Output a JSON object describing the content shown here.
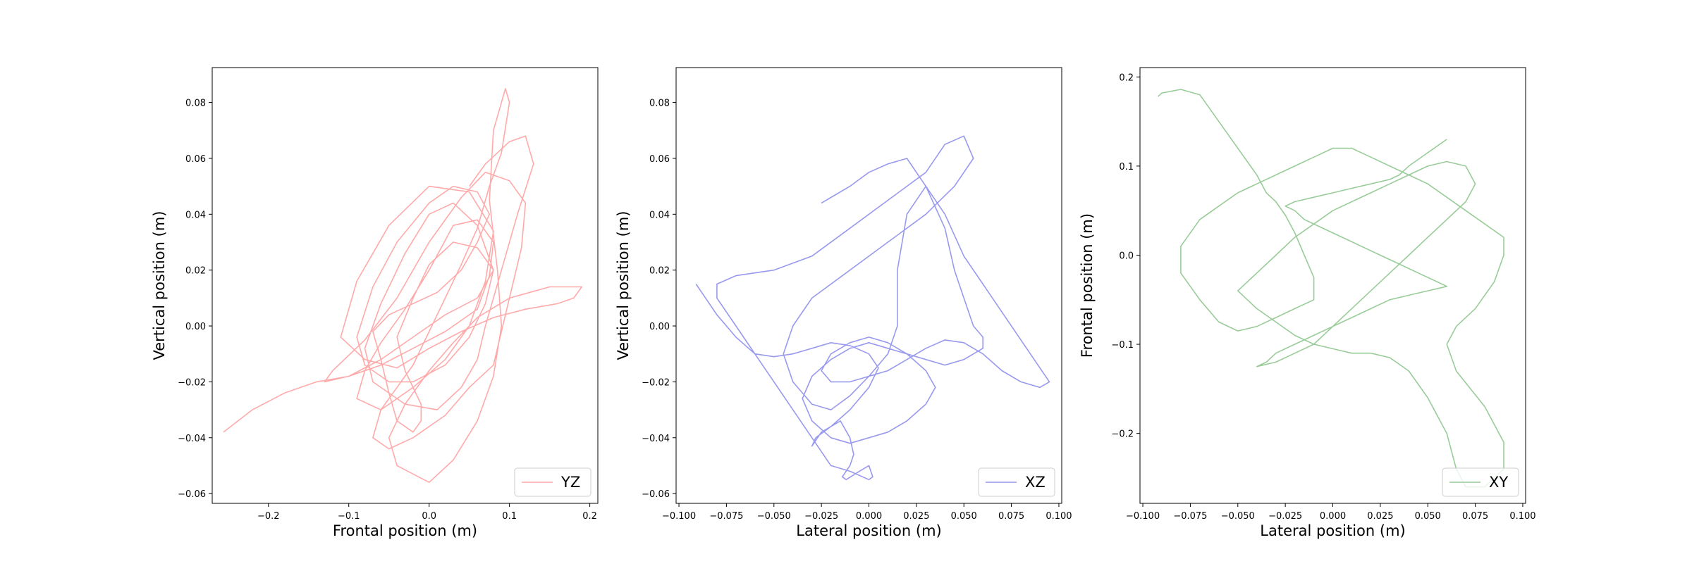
{
  "chart_data": [
    {
      "type": "line",
      "title": "",
      "xlabel": "Frontal position (m)",
      "ylabel": "Vertical position  (m)",
      "xlim": [
        -0.27,
        0.21
      ],
      "ylim": [
        -0.0635,
        0.0925
      ],
      "xticks": [
        -0.2,
        -0.1,
        0.0,
        0.1,
        0.2
      ],
      "xtick_labels": [
        "−0.2",
        "−0.1",
        "0.0",
        "0.1",
        "0.2"
      ],
      "yticks": [
        -0.06,
        -0.04,
        -0.02,
        0.0,
        0.02,
        0.04,
        0.06,
        0.08
      ],
      "ytick_labels": [
        "−0.06",
        "−0.04",
        "−0.02",
        "0.00",
        "0.02",
        "0.04",
        "0.06",
        "0.08"
      ],
      "grid": false,
      "legend_position": "lower-right",
      "color": "#ffaaaa",
      "series": [
        {
          "name": "YZ",
          "x": [
            -0.256,
            -0.22,
            -0.18,
            -0.14,
            -0.1,
            -0.06,
            -0.02,
            0.02,
            0.06,
            0.075,
            0.08,
            0.06,
            0.03,
            0.0,
            -0.03,
            -0.06,
            -0.08,
            -0.09,
            -0.06,
            -0.02,
            0.02,
            0.05,
            0.07,
            0.08,
            0.05,
            0.0,
            -0.05,
            -0.09,
            -0.11,
            -0.08,
            -0.04,
            0.0,
            0.04,
            0.08,
            0.12,
            0.16,
            0.18,
            0.19,
            0.15,
            0.1,
            0.06,
            0.03,
            0.0,
            -0.03,
            -0.05,
            -0.04,
            0.0,
            0.03,
            0.06,
            0.08,
            0.09,
            0.085,
            0.075,
            0.08,
            0.095,
            0.1,
            0.09,
            0.075,
            0.06,
            0.04,
            0.02,
            0.0,
            -0.02,
            -0.04,
            -0.06,
            -0.07,
            -0.05,
            -0.02,
            0.02,
            0.05,
            0.08,
            0.1,
            0.115,
            0.12,
            0.1,
            0.07,
            0.04,
            0.0,
            -0.04,
            -0.08,
            -0.12,
            -0.13,
            -0.1,
            -0.06,
            -0.02,
            0.02,
            0.06,
            0.08,
            0.06,
            0.03,
            0.0,
            -0.02,
            -0.04,
            -0.03,
            -0.01,
            -0.01,
            -0.02,
            -0.04,
            -0.05,
            -0.06,
            -0.07,
            -0.05,
            -0.02,
            0.01,
            0.04,
            0.06,
            0.075,
            0.06,
            0.03,
            0.0,
            -0.04,
            -0.07,
            -0.09,
            -0.08,
            -0.05,
            -0.02,
            0.02,
            0.05,
            0.07,
            0.08,
            0.06,
            0.03,
            0.0,
            -0.03,
            -0.06,
            -0.08,
            -0.07,
            -0.03,
            0.01,
            0.04,
            0.06,
            0.07,
            0.09,
            0.11,
            0.13,
            0.12,
            0.1,
            0.07,
            0.05
          ],
          "y": [
            -0.038,
            -0.03,
            -0.024,
            -0.02,
            -0.018,
            -0.014,
            -0.008,
            -0.002,
            0.006,
            0.018,
            0.03,
            0.038,
            0.036,
            0.02,
            0.006,
            -0.006,
            -0.016,
            -0.026,
            -0.03,
            -0.022,
            -0.012,
            0.0,
            0.016,
            0.034,
            0.048,
            0.05,
            0.036,
            0.016,
            -0.004,
            -0.012,
            -0.015,
            -0.008,
            -0.002,
            0.003,
            0.006,
            0.008,
            0.01,
            0.014,
            0.014,
            0.01,
            0.003,
            -0.006,
            -0.016,
            -0.028,
            -0.04,
            -0.05,
            -0.056,
            -0.048,
            -0.034,
            -0.018,
            0.0,
            0.02,
            0.045,
            0.07,
            0.085,
            0.08,
            0.062,
            0.05,
            0.035,
            0.022,
            0.01,
            -0.002,
            -0.014,
            -0.022,
            -0.03,
            -0.04,
            -0.044,
            -0.04,
            -0.032,
            -0.022,
            -0.014,
            0.01,
            0.028,
            0.044,
            0.052,
            0.055,
            0.046,
            0.03,
            0.01,
            -0.005,
            -0.016,
            -0.02,
            -0.018,
            -0.012,
            -0.004,
            0.004,
            0.01,
            0.02,
            0.028,
            0.03,
            0.022,
            0.01,
            -0.004,
            -0.016,
            -0.028,
            -0.034,
            -0.038,
            -0.034,
            -0.024,
            -0.012,
            -0.002,
            0.004,
            0.008,
            0.012,
            0.02,
            0.03,
            0.04,
            0.048,
            0.05,
            0.044,
            0.03,
            0.014,
            -0.004,
            -0.014,
            -0.02,
            -0.02,
            -0.014,
            -0.004,
            0.008,
            0.02,
            0.036,
            0.044,
            0.04,
            0.026,
            0.008,
            -0.008,
            -0.02,
            -0.028,
            -0.03,
            -0.022,
            -0.012,
            0.0,
            0.02,
            0.04,
            0.058,
            0.068,
            0.066,
            0.058,
            0.05
          ]
        }
      ]
    },
    {
      "type": "line",
      "title": "",
      "xlabel": "Lateral position (m)",
      "ylabel": "Vertical position (m)",
      "xlim": [
        -0.1015,
        0.1015
      ],
      "ylim": [
        -0.0635,
        0.0925
      ],
      "xticks": [
        -0.1,
        -0.075,
        -0.05,
        -0.025,
        0.0,
        0.025,
        0.05,
        0.075,
        0.1
      ],
      "xtick_labels": [
        "−0.100",
        "−0.075",
        "−0.050",
        "−0.025",
        "0.000",
        "0.025",
        "0.050",
        "0.075",
        "0.100"
      ],
      "yticks": [
        -0.06,
        -0.04,
        -0.02,
        0.0,
        0.02,
        0.04,
        0.06,
        0.08
      ],
      "ytick_labels": [
        "−0.06",
        "−0.04",
        "−0.02",
        "0.00",
        "0.02",
        "0.04",
        "0.06",
        "0.08"
      ],
      "grid": false,
      "legend_position": "lower-right",
      "color": "#9999ee",
      "series": [
        {
          "name": "XZ",
          "x": [
            -0.091,
            -0.088,
            -0.08,
            -0.07,
            -0.06,
            -0.05,
            -0.04,
            -0.03,
            -0.02,
            -0.01,
            0.0,
            0.005,
            0.0,
            -0.01,
            -0.02,
            -0.028,
            -0.03,
            -0.025,
            -0.015,
            -0.01,
            -0.008,
            -0.01,
            -0.014,
            -0.012,
            -0.005,
            0.0,
            0.002,
            0.0,
            -0.01,
            -0.02,
            -0.03,
            -0.04,
            -0.05,
            -0.06,
            -0.07,
            -0.08,
            -0.08,
            -0.07,
            -0.05,
            -0.03,
            -0.01,
            0.01,
            0.02,
            0.03,
            0.04,
            0.05,
            0.055,
            0.045,
            0.03,
            0.01,
            -0.01,
            -0.03,
            -0.04,
            -0.045,
            -0.04,
            -0.03,
            -0.02,
            -0.01,
            0.0,
            0.01,
            0.015,
            0.015,
            0.02,
            0.03,
            0.04,
            0.05,
            0.06,
            0.07,
            0.08,
            0.09,
            0.095,
            0.09,
            0.08,
            0.07,
            0.06,
            0.05,
            0.04,
            0.03,
            0.02,
            0.01,
            0.0,
            -0.01,
            -0.02,
            -0.025,
            -0.02,
            -0.01,
            0.0,
            0.01,
            0.02,
            0.03,
            0.035,
            0.03,
            0.02,
            0.01,
            0.0,
            -0.01,
            -0.02,
            -0.03,
            -0.035,
            -0.03,
            -0.02,
            -0.01,
            0.0,
            0.01,
            0.02,
            0.03,
            0.04,
            0.05,
            0.06,
            0.06,
            0.055,
            0.05,
            0.045,
            0.04,
            0.03,
            0.02,
            0.01,
            0.0,
            -0.01,
            -0.02,
            -0.025
          ],
          "y": [
            0.015,
            0.012,
            0.004,
            -0.004,
            -0.01,
            -0.011,
            -0.01,
            -0.008,
            -0.006,
            -0.007,
            -0.01,
            -0.015,
            -0.022,
            -0.03,
            -0.036,
            -0.04,
            -0.043,
            -0.038,
            -0.034,
            -0.04,
            -0.046,
            -0.05,
            -0.054,
            -0.055,
            -0.052,
            -0.05,
            -0.054,
            -0.055,
            -0.052,
            -0.05,
            -0.04,
            -0.03,
            -0.02,
            -0.01,
            0.0,
            0.01,
            0.015,
            0.018,
            0.02,
            0.025,
            0.035,
            0.045,
            0.05,
            0.055,
            0.065,
            0.068,
            0.06,
            0.05,
            0.04,
            0.03,
            0.02,
            0.01,
            0.0,
            -0.01,
            -0.02,
            -0.028,
            -0.03,
            -0.025,
            -0.018,
            -0.01,
            0.0,
            0.02,
            0.04,
            0.05,
            0.04,
            0.025,
            0.015,
            0.005,
            -0.005,
            -0.015,
            -0.02,
            -0.022,
            -0.02,
            -0.016,
            -0.01,
            -0.006,
            -0.005,
            -0.008,
            -0.012,
            -0.016,
            -0.018,
            -0.02,
            -0.02,
            -0.016,
            -0.01,
            -0.006,
            -0.004,
            -0.006,
            -0.01,
            -0.016,
            -0.022,
            -0.028,
            -0.034,
            -0.038,
            -0.04,
            -0.042,
            -0.04,
            -0.034,
            -0.026,
            -0.018,
            -0.012,
            -0.008,
            -0.006,
            -0.008,
            -0.01,
            -0.012,
            -0.014,
            -0.012,
            -0.008,
            -0.004,
            0.0,
            0.01,
            0.02,
            0.035,
            0.05,
            0.06,
            0.058,
            0.055,
            0.05,
            0.046,
            0.044
          ]
        }
      ]
    },
    {
      "type": "line",
      "title": "",
      "xlabel": "Lateral position (m)",
      "ylabel": "Frontal position (m)",
      "xlim": [
        -0.1015,
        0.1015
      ],
      "ylim": [
        -0.2785,
        0.2105
      ],
      "xticks": [
        -0.1,
        -0.075,
        -0.05,
        -0.025,
        0.0,
        0.025,
        0.05,
        0.075,
        0.1
      ],
      "xtick_labels": [
        "−0.100",
        "−0.075",
        "−0.050",
        "−0.025",
        "0.000",
        "0.025",
        "0.050",
        "0.075",
        "0.100"
      ],
      "yticks": [
        -0.2,
        -0.1,
        0.0,
        0.1,
        0.2
      ],
      "ytick_labels": [
        "−0.2",
        "−0.1",
        "0.0",
        "0.1",
        "0.2"
      ],
      "grid": false,
      "legend_position": "lower-right",
      "color": "#99cc99",
      "series": [
        {
          "name": "XY",
          "x": [
            -0.092,
            -0.09,
            -0.08,
            -0.07,
            -0.06,
            -0.05,
            -0.04,
            -0.035,
            -0.03,
            -0.025,
            -0.02,
            -0.015,
            -0.01,
            -0.01,
            -0.02,
            -0.03,
            -0.04,
            -0.05,
            -0.06,
            -0.07,
            -0.08,
            -0.08,
            -0.07,
            -0.06,
            -0.05,
            -0.04,
            -0.03,
            -0.02,
            -0.01,
            0.0,
            0.01,
            0.02,
            0.03,
            0.04,
            0.05,
            0.06,
            0.07,
            0.08,
            0.09,
            0.09,
            0.085,
            0.075,
            0.065,
            0.06,
            0.065,
            0.08,
            0.09,
            0.09,
            0.085,
            0.08,
            0.07,
            0.065,
            0.06,
            0.05,
            0.04,
            0.03,
            0.02,
            0.01,
            0.0,
            -0.01,
            -0.02,
            -0.03,
            -0.04,
            -0.05,
            -0.04,
            -0.03,
            -0.02,
            -0.01,
            0.0,
            0.01,
            0.02,
            0.03,
            0.04,
            0.05,
            0.06,
            0.07,
            0.075,
            0.07,
            0.06,
            0.05,
            0.04,
            0.03,
            0.02,
            0.01,
            0.0,
            -0.01,
            -0.02,
            -0.03,
            -0.04,
            -0.035,
            -0.03,
            -0.02,
            -0.01,
            0.0,
            0.01,
            0.02,
            0.03,
            0.04,
            0.05,
            0.06,
            0.055,
            0.045,
            0.035,
            0.025,
            0.015,
            0.005,
            -0.005,
            -0.015,
            -0.02,
            -0.025,
            -0.02,
            -0.01,
            0.0,
            0.01,
            0.02,
            0.03,
            0.035,
            0.04,
            0.05,
            0.06
          ],
          "y": [
            0.178,
            0.182,
            0.186,
            0.18,
            0.15,
            0.12,
            0.09,
            0.07,
            0.06,
            0.045,
            0.025,
            0.0,
            -0.025,
            -0.05,
            -0.06,
            -0.07,
            -0.08,
            -0.085,
            -0.075,
            -0.05,
            -0.02,
            0.01,
            0.04,
            0.055,
            0.07,
            0.08,
            0.09,
            0.1,
            0.11,
            0.12,
            0.12,
            0.11,
            0.1,
            0.09,
            0.08,
            0.065,
            0.05,
            0.035,
            0.02,
            0.0,
            -0.03,
            -0.06,
            -0.08,
            -0.1,
            -0.13,
            -0.17,
            -0.21,
            -0.24,
            -0.25,
            -0.26,
            -0.26,
            -0.24,
            -0.2,
            -0.16,
            -0.13,
            -0.115,
            -0.11,
            -0.11,
            -0.105,
            -0.1,
            -0.09,
            -0.075,
            -0.06,
            -0.04,
            -0.02,
            0.0,
            0.02,
            0.035,
            0.05,
            0.06,
            0.07,
            0.08,
            0.09,
            0.1,
            0.105,
            0.1,
            0.08,
            0.06,
            0.04,
            0.02,
            0.0,
            -0.02,
            -0.04,
            -0.06,
            -0.08,
            -0.1,
            -0.11,
            -0.12,
            -0.125,
            -0.12,
            -0.11,
            -0.1,
            -0.09,
            -0.08,
            -0.07,
            -0.06,
            -0.05,
            -0.045,
            -0.04,
            -0.035,
            -0.03,
            -0.02,
            -0.01,
            0.0,
            0.01,
            0.02,
            0.03,
            0.04,
            0.05,
            0.055,
            0.06,
            0.065,
            0.07,
            0.075,
            0.08,
            0.085,
            0.09,
            0.1,
            0.115,
            0.13
          ]
        }
      ]
    }
  ]
}
